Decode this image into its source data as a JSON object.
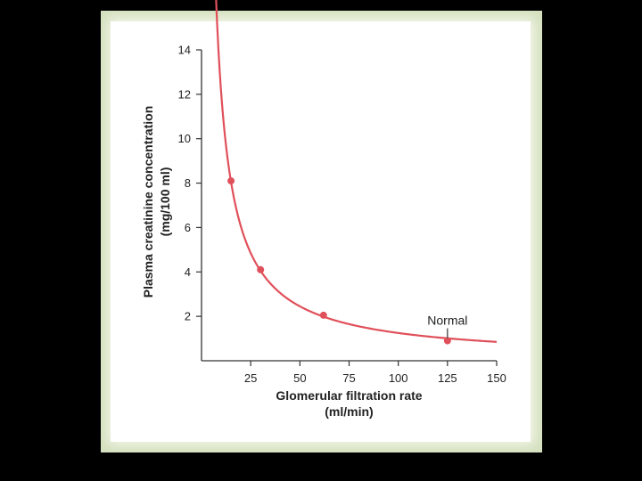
{
  "chart_data": {
    "type": "line",
    "title": "",
    "xlabel_lines": [
      "Glomerular filtration rate",
      "(ml/min)"
    ],
    "ylabel_lines": [
      "Plasma creatinine concentration",
      "(mg/100 ml)"
    ],
    "xlim": [
      0,
      150
    ],
    "ylim": [
      0,
      14
    ],
    "xticks": [
      25,
      50,
      75,
      100,
      125,
      150
    ],
    "yticks": [
      2,
      4,
      6,
      8,
      10,
      12,
      14
    ],
    "grid": false,
    "series": [
      {
        "name": "",
        "color": "#e0505a",
        "curve_k": 120,
        "curve_c": 0.05,
        "curve_x_range": [
          7.3,
          150
        ],
        "points": [
          {
            "x": 15,
            "y": 8.1
          },
          {
            "x": 30,
            "y": 4.1
          },
          {
            "x": 62,
            "y": 2.05
          },
          {
            "x": 125,
            "y": 0.9
          }
        ]
      }
    ],
    "annotation": {
      "text": "Normal",
      "x": 125,
      "y": 0.9
    }
  }
}
